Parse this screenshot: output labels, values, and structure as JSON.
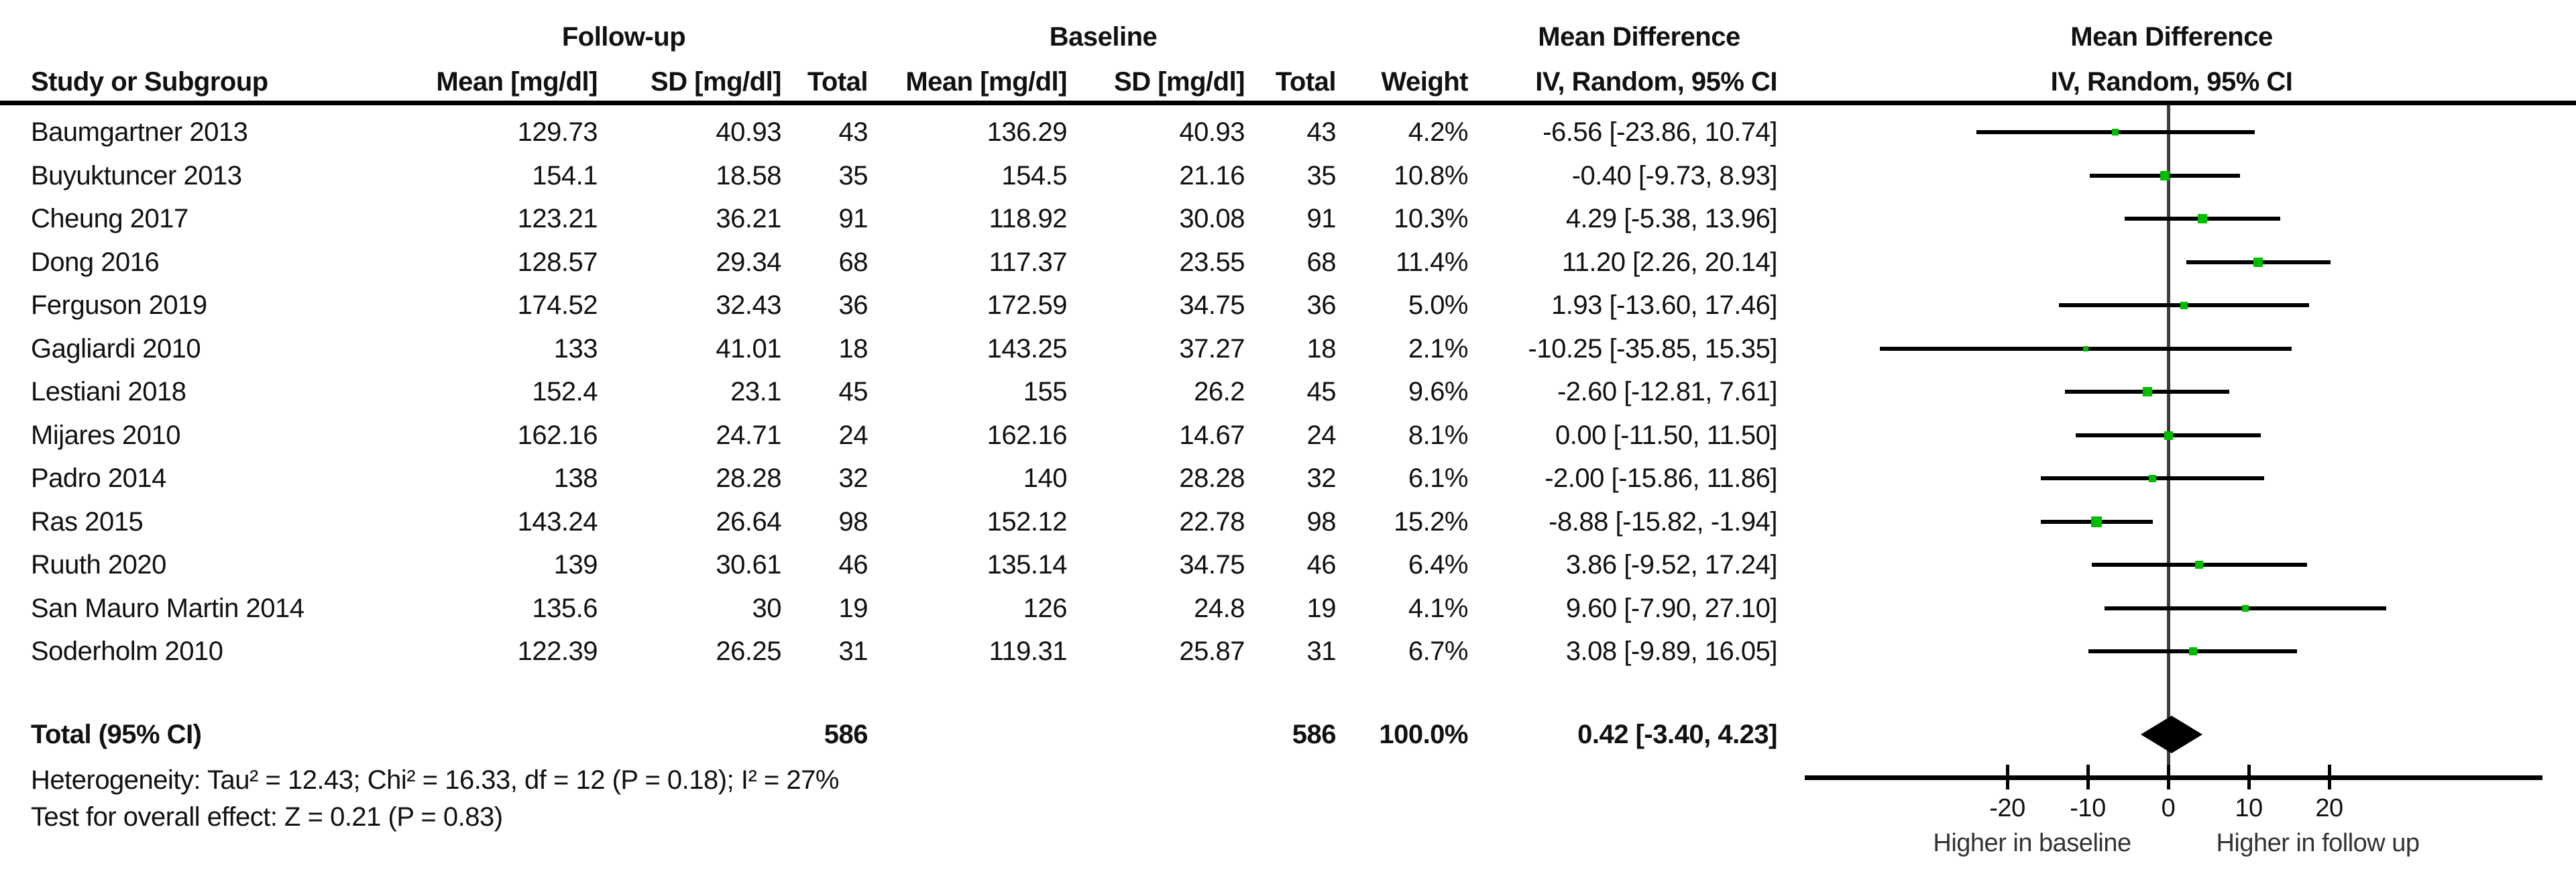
{
  "header": {
    "study_col": "Study or Subgroup",
    "group1": "Follow-up",
    "group2": "Baseline",
    "mean_col": "Mean [mg/dl]",
    "sd_col": "SD [mg/dl]",
    "total_col": "Total",
    "weight_col": "Weight",
    "md_col_line1": "Mean Difference",
    "md_col_line2": "IV, Random, 95% CI",
    "plot_col_line1": "Mean Difference",
    "plot_col_line2": "IV, Random, 95% CI"
  },
  "rows": [
    {
      "study": "Baumgartner 2013",
      "fu_mean": "129.73",
      "fu_sd": "40.93",
      "fu_total": "43",
      "bl_mean": "136.29",
      "bl_sd": "40.93",
      "bl_total": "43",
      "weight": "4.2%",
      "ci_text": "-6.56 [-23.86, 10.74]",
      "md": -6.56,
      "lo": -23.86,
      "hi": 10.74,
      "w": 4.2
    },
    {
      "study": "Buyuktuncer 2013",
      "fu_mean": "154.1",
      "fu_sd": "18.58",
      "fu_total": "35",
      "bl_mean": "154.5",
      "bl_sd": "21.16",
      "bl_total": "35",
      "weight": "10.8%",
      "ci_text": "-0.40 [-9.73, 8.93]",
      "md": -0.4,
      "lo": -9.73,
      "hi": 8.93,
      "w": 10.8
    },
    {
      "study": "Cheung 2017",
      "fu_mean": "123.21",
      "fu_sd": "36.21",
      "fu_total": "91",
      "bl_mean": "118.92",
      "bl_sd": "30.08",
      "bl_total": "91",
      "weight": "10.3%",
      "ci_text": "4.29 [-5.38, 13.96]",
      "md": 4.29,
      "lo": -5.38,
      "hi": 13.96,
      "w": 10.3
    },
    {
      "study": "Dong 2016",
      "fu_mean": "128.57",
      "fu_sd": "29.34",
      "fu_total": "68",
      "bl_mean": "117.37",
      "bl_sd": "23.55",
      "bl_total": "68",
      "weight": "11.4%",
      "ci_text": "11.20 [2.26, 20.14]",
      "md": 11.2,
      "lo": 2.26,
      "hi": 20.14,
      "w": 11.4
    },
    {
      "study": "Ferguson 2019",
      "fu_mean": "174.52",
      "fu_sd": "32.43",
      "fu_total": "36",
      "bl_mean": "172.59",
      "bl_sd": "34.75",
      "bl_total": "36",
      "weight": "5.0%",
      "ci_text": "1.93 [-13.60, 17.46]",
      "md": 1.93,
      "lo": -13.6,
      "hi": 17.46,
      "w": 5.0
    },
    {
      "study": "Gagliardi 2010",
      "fu_mean": "133",
      "fu_sd": "41.01",
      "fu_total": "18",
      "bl_mean": "143.25",
      "bl_sd": "37.27",
      "bl_total": "18",
      "weight": "2.1%",
      "ci_text": "-10.25 [-35.85, 15.35]",
      "md": -10.25,
      "lo": -35.85,
      "hi": 15.35,
      "w": 2.1
    },
    {
      "study": "Lestiani 2018",
      "fu_mean": "152.4",
      "fu_sd": "23.1",
      "fu_total": "45",
      "bl_mean": "155",
      "bl_sd": "26.2",
      "bl_total": "45",
      "weight": "9.6%",
      "ci_text": "-2.60 [-12.81, 7.61]",
      "md": -2.6,
      "lo": -12.81,
      "hi": 7.61,
      "w": 9.6
    },
    {
      "study": "Mijares 2010",
      "fu_mean": "162.16",
      "fu_sd": "24.71",
      "fu_total": "24",
      "bl_mean": "162.16",
      "bl_sd": "14.67",
      "bl_total": "24",
      "weight": "8.1%",
      "ci_text": "0.00 [-11.50, 11.50]",
      "md": 0.0,
      "lo": -11.5,
      "hi": 11.5,
      "w": 8.1
    },
    {
      "study": "Padro 2014",
      "fu_mean": "138",
      "fu_sd": "28.28",
      "fu_total": "32",
      "bl_mean": "140",
      "bl_sd": "28.28",
      "bl_total": "32",
      "weight": "6.1%",
      "ci_text": "-2.00 [-15.86, 11.86]",
      "md": -2.0,
      "lo": -15.86,
      "hi": 11.86,
      "w": 6.1
    },
    {
      "study": "Ras 2015",
      "fu_mean": "143.24",
      "fu_sd": "26.64",
      "fu_total": "98",
      "bl_mean": "152.12",
      "bl_sd": "22.78",
      "bl_total": "98",
      "weight": "15.2%",
      "ci_text": "-8.88 [-15.82, -1.94]",
      "md": -8.88,
      "lo": -15.82,
      "hi": -1.94,
      "w": 15.2
    },
    {
      "study": "Ruuth 2020",
      "fu_mean": "139",
      "fu_sd": "30.61",
      "fu_total": "46",
      "bl_mean": "135.14",
      "bl_sd": "34.75",
      "bl_total": "46",
      "weight": "6.4%",
      "ci_text": "3.86 [-9.52, 17.24]",
      "md": 3.86,
      "lo": -9.52,
      "hi": 17.24,
      "w": 6.4
    },
    {
      "study": "San Mauro Martin 2014",
      "fu_mean": "135.6",
      "fu_sd": "30",
      "fu_total": "19",
      "bl_mean": "126",
      "bl_sd": "24.8",
      "bl_total": "19",
      "weight": "4.1%",
      "ci_text": "9.60 [-7.90, 27.10]",
      "md": 9.6,
      "lo": -7.9,
      "hi": 27.1,
      "w": 4.1
    },
    {
      "study": "Soderholm 2010",
      "fu_mean": "122.39",
      "fu_sd": "26.25",
      "fu_total": "31",
      "bl_mean": "119.31",
      "bl_sd": "25.87",
      "bl_total": "31",
      "weight": "6.7%",
      "ci_text": "3.08 [-9.89, 16.05]",
      "md": 3.08,
      "lo": -9.89,
      "hi": 16.05,
      "w": 6.7
    }
  ],
  "totals": {
    "label": "Total (95% CI)",
    "fu_total": "586",
    "bl_total": "586",
    "weight": "100.0%",
    "ci_text": "0.42 [-3.40, 4.23]",
    "md": 0.42,
    "lo": -3.4,
    "hi": 4.23
  },
  "footnotes": {
    "heterogeneity": "Heterogeneity: Tau² = 12.43; Chi² = 16.33, df = 12 (P = 0.18); I² = 27%",
    "overall_effect": "Test for overall effect: Z = 0.21 (P = 0.83)"
  },
  "axis": {
    "ticks": [
      "-20",
      "-10",
      "0",
      "10",
      "20"
    ],
    "tick_values": [
      -20,
      -10,
      0,
      10,
      20
    ],
    "label_left": "Higher in baseline",
    "label_right": "Higher in follow up"
  },
  "colors": {
    "square_green": "#00BD00",
    "ci_line": "#000000",
    "zero_line": "#3c3c3c",
    "text": "#111111"
  },
  "chart_data": {
    "type": "scatter",
    "subtype": "forest-plot-meta-analysis",
    "title": "Mean Difference, IV, Random, 95% CI",
    "xlabel_left": "Higher in baseline",
    "xlabel_right": "Higher in follow up",
    "xlim": [
      -45,
      46
    ],
    "x_ticks": [
      -20,
      -10,
      0,
      10,
      20
    ],
    "units": "mg/dl",
    "studies": [
      "Baumgartner 2013",
      "Buyuktuncer 2013",
      "Cheung 2017",
      "Dong 2016",
      "Ferguson 2019",
      "Gagliardi 2010",
      "Lestiani 2018",
      "Mijares 2010",
      "Padro 2014",
      "Ras 2015",
      "Ruuth 2020",
      "San Mauro Martin 2014",
      "Soderholm 2010"
    ],
    "mean_difference": [
      -6.56,
      -0.4,
      4.29,
      11.2,
      1.93,
      -10.25,
      -2.6,
      0.0,
      -2.0,
      -8.88,
      3.86,
      9.6,
      3.08
    ],
    "ci_lower": [
      -23.86,
      -9.73,
      -5.38,
      2.26,
      -13.6,
      -35.85,
      -12.81,
      -11.5,
      -15.86,
      -15.82,
      -9.52,
      -7.9,
      -9.89
    ],
    "ci_upper": [
      10.74,
      8.93,
      13.96,
      20.14,
      17.46,
      15.35,
      7.61,
      11.5,
      11.86,
      -1.94,
      17.24,
      27.1,
      16.05
    ],
    "weights_pct": [
      4.2,
      10.8,
      10.3,
      11.4,
      5.0,
      2.1,
      9.6,
      8.1,
      6.1,
      15.2,
      6.4,
      4.1,
      6.7
    ],
    "pooled": {
      "md": 0.42,
      "ci_lower": -3.4,
      "ci_upper": 4.23,
      "n_followup": 586,
      "n_baseline": 586
    },
    "heterogeneity": {
      "tau2": 12.43,
      "chi2": 16.33,
      "df": 12,
      "p": 0.18,
      "i2_pct": 27
    },
    "overall_effect": {
      "z": 0.21,
      "p": 0.83
    }
  }
}
